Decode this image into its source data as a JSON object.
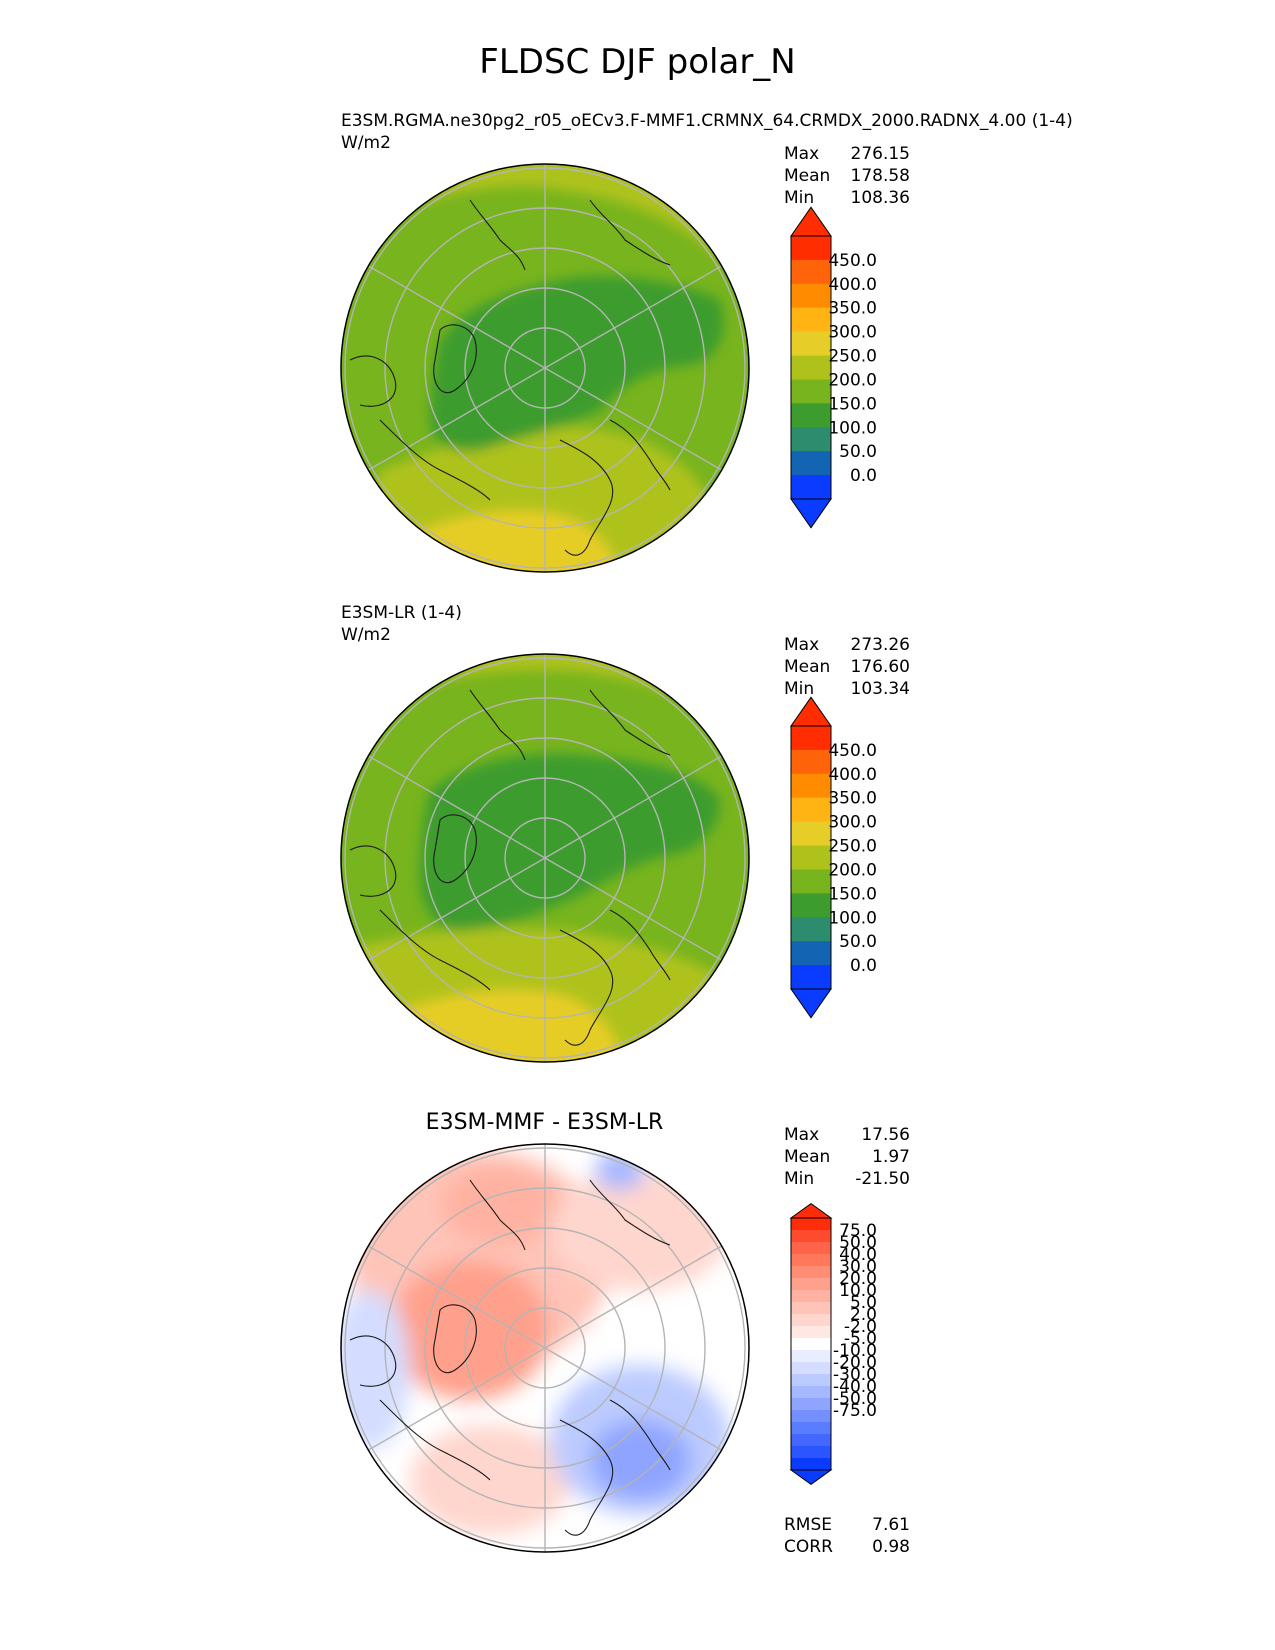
{
  "title": "FLDSC DJF polar_N",
  "colors": {
    "frame": "#000000",
    "grid": "#b4b4b4",
    "coast": "#1a1a1a",
    "abs_palette": [
      "#0a3cff",
      "#1464b4",
      "#2e8c6e",
      "#3c9c2d",
      "#78b41e",
      "#afc21c",
      "#e6cd28",
      "#ffb414",
      "#ff8c00",
      "#ff640a",
      "#ff2d00"
    ],
    "diff_palette": [
      "#0a3cff",
      "#2a55ff",
      "#4468ff",
      "#5a7cff",
      "#7490ff",
      "#8ea4ff",
      "#a6b8ff",
      "#bccbff",
      "#d4ddff",
      "#e8edff",
      "#ffffff",
      "#ffe8e4",
      "#ffd6ce",
      "#ffc4b8",
      "#ffb2a2",
      "#ffa08c",
      "#ff8c74",
      "#ff785c",
      "#ff6448",
      "#ff4b2d",
      "#ff2d0a"
    ]
  },
  "panels": [
    {
      "id": "test",
      "label": "E3SM.RGMA.ne30pg2_r05_oECv3.F-MMF1.CRMNX_64.CRMDX_2000.RADNX_4.00 (1-4)",
      "units": "W/m2",
      "stats": [
        {
          "name": "Max",
          "value": "276.15"
        },
        {
          "name": "Mean",
          "value": "178.58"
        },
        {
          "name": "Min",
          "value": "108.36"
        }
      ],
      "colorbar_ticks": [
        "450.0",
        "400.0",
        "350.0",
        "300.0",
        "250.0",
        "200.0",
        "150.0",
        "100.0",
        "50.0",
        "0.0"
      ]
    },
    {
      "id": "reference",
      "label": "E3SM-LR (1-4)",
      "units": "W/m2",
      "stats": [
        {
          "name": "Max",
          "value": "273.26"
        },
        {
          "name": "Mean",
          "value": "176.60"
        },
        {
          "name": "Min",
          "value": "103.34"
        }
      ],
      "colorbar_ticks": [
        "450.0",
        "400.0",
        "350.0",
        "300.0",
        "250.0",
        "200.0",
        "150.0",
        "100.0",
        "50.0",
        "0.0"
      ]
    },
    {
      "id": "difference",
      "label": "E3SM-MMF - E3SM-LR",
      "stats": [
        {
          "name": "Max",
          "value": "17.56"
        },
        {
          "name": "Mean",
          "value": "1.97"
        },
        {
          "name": "Min",
          "value": "-21.50"
        }
      ],
      "colorbar_ticks": [
        "75.0",
        "50.0",
        "40.0",
        "30.0",
        "20.0",
        "10.0",
        "5.0",
        "2.0",
        "-2.0",
        "-5.0",
        "-10.0",
        "-20.0",
        "-30.0",
        "-40.0",
        "-50.0",
        "-75.0"
      ],
      "metrics": [
        {
          "name": "RMSE",
          "value": "7.61"
        },
        {
          "name": "CORR",
          "value": "0.98"
        }
      ]
    }
  ]
}
